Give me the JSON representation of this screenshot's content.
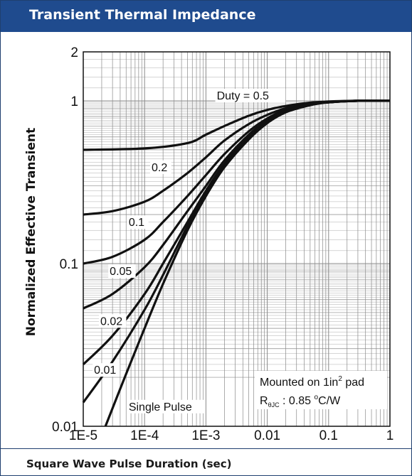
{
  "header": {
    "title": "Transient Thermal Impedance"
  },
  "footer": {
    "xlabel": "Square Wave Pulse Duration (sec)"
  },
  "colors": {
    "title_bar": "#1f4b8e",
    "curve": "#111111",
    "grid": "#8a8a8a"
  },
  "chart_data": {
    "type": "line",
    "title": "Transient Thermal Impedance",
    "xlabel": "Square Wave Pulse Duration (sec)",
    "ylabel": "Normalized Effective Transient",
    "x_scale": "log",
    "y_scale": "log",
    "xlim": [
      1e-05,
      1
    ],
    "ylim": [
      0.01,
      2
    ],
    "grid": true,
    "x_ticks": [
      {
        "value": 1e-05,
        "label": "1E-5"
      },
      {
        "value": 0.0001,
        "label": "1E-4"
      },
      {
        "value": 0.001,
        "label": "1E-3"
      },
      {
        "value": 0.01,
        "label": "0.01"
      },
      {
        "value": 0.1,
        "label": "0.1"
      },
      {
        "value": 1,
        "label": "1"
      }
    ],
    "y_ticks": [
      {
        "value": 0.01,
        "label": "0.01"
      },
      {
        "value": 0.1,
        "label": "0.1"
      },
      {
        "value": 1,
        "label": "1"
      },
      {
        "value": 2,
        "label": "2"
      }
    ],
    "series": [
      {
        "name": "0.5",
        "label": "Duty =  0.5",
        "label_at": [
          0.0015,
          1.02
        ],
        "points": [
          [
            1e-05,
            0.5
          ],
          [
            0.0001,
            0.51
          ],
          [
            0.0005,
            0.55
          ],
          [
            0.001,
            0.62
          ],
          [
            0.002,
            0.7
          ],
          [
            0.005,
            0.81
          ],
          [
            0.01,
            0.88
          ],
          [
            0.02,
            0.93
          ],
          [
            0.05,
            0.975
          ],
          [
            0.1,
            0.99
          ],
          [
            0.3,
            1.0
          ],
          [
            1,
            1.0
          ]
        ]
      },
      {
        "name": "0.2",
        "label": "0.2",
        "label_at": [
          0.00013,
          0.37
        ],
        "points": [
          [
            1e-05,
            0.2
          ],
          [
            3e-05,
            0.21
          ],
          [
            0.0001,
            0.24
          ],
          [
            0.0002,
            0.28
          ],
          [
            0.0005,
            0.36
          ],
          [
            0.001,
            0.45
          ],
          [
            0.002,
            0.57
          ],
          [
            0.005,
            0.72
          ],
          [
            0.01,
            0.82
          ],
          [
            0.02,
            0.9
          ],
          [
            0.05,
            0.96
          ],
          [
            0.1,
            0.985
          ],
          [
            0.3,
            1.0
          ],
          [
            1,
            1.0
          ]
        ]
      },
      {
        "name": "0.1",
        "label": "0.1",
        "label_at": [
          5.5e-05,
          0.17
        ],
        "points": [
          [
            1e-05,
            0.1
          ],
          [
            3e-05,
            0.11
          ],
          [
            0.0001,
            0.14
          ],
          [
            0.0002,
            0.18
          ],
          [
            0.0005,
            0.26
          ],
          [
            0.001,
            0.35
          ],
          [
            0.002,
            0.47
          ],
          [
            0.005,
            0.65
          ],
          [
            0.01,
            0.78
          ],
          [
            0.02,
            0.88
          ],
          [
            0.05,
            0.955
          ],
          [
            0.1,
            0.98
          ],
          [
            0.3,
            1.0
          ],
          [
            1,
            1.0
          ]
        ]
      },
      {
        "name": "0.05",
        "label": "0.05",
        "label_at": [
          2.7e-05,
          0.085
        ],
        "points": [
          [
            1e-05,
            0.053
          ],
          [
            3e-05,
            0.065
          ],
          [
            0.0001,
            0.095
          ],
          [
            0.0002,
            0.13
          ],
          [
            0.0005,
            0.21
          ],
          [
            0.001,
            0.3
          ],
          [
            0.002,
            0.43
          ],
          [
            0.005,
            0.62
          ],
          [
            0.01,
            0.76
          ],
          [
            0.02,
            0.87
          ],
          [
            0.05,
            0.95
          ],
          [
            0.1,
            0.98
          ],
          [
            0.3,
            1.0
          ],
          [
            1,
            1.0
          ]
        ]
      },
      {
        "name": "0.02",
        "label": "0.02",
        "label_at": [
          1.9e-05,
          0.042
        ],
        "points": [
          [
            1e-05,
            0.024
          ],
          [
            3e-05,
            0.036
          ],
          [
            0.0001,
            0.065
          ],
          [
            0.0002,
            0.1
          ],
          [
            0.0005,
            0.18
          ],
          [
            0.001,
            0.28
          ],
          [
            0.002,
            0.41
          ],
          [
            0.005,
            0.6
          ],
          [
            0.01,
            0.75
          ],
          [
            0.02,
            0.86
          ],
          [
            0.05,
            0.95
          ],
          [
            0.1,
            0.98
          ],
          [
            0.3,
            1.0
          ],
          [
            1,
            1.0
          ]
        ]
      },
      {
        "name": "0.01",
        "label": "0.01",
        "label_at": [
          1.5e-05,
          0.021
        ],
        "points": [
          [
            1e-05,
            0.014
          ],
          [
            3e-05,
            0.025
          ],
          [
            0.0001,
            0.052
          ],
          [
            0.0002,
            0.085
          ],
          [
            0.0005,
            0.17
          ],
          [
            0.001,
            0.27
          ],
          [
            0.002,
            0.4
          ],
          [
            0.005,
            0.59
          ],
          [
            0.01,
            0.74
          ],
          [
            0.02,
            0.86
          ],
          [
            0.05,
            0.945
          ],
          [
            0.1,
            0.98
          ],
          [
            0.3,
            1.0
          ],
          [
            1,
            1.0
          ]
        ]
      },
      {
        "name": "Single Pulse",
        "label": "Single Pulse",
        "label_at": [
          5.5e-05,
          0.0125
        ],
        "points": [
          [
            2.3e-05,
            0.01
          ],
          [
            5e-05,
            0.021
          ],
          [
            0.0001,
            0.04
          ],
          [
            0.0002,
            0.075
          ],
          [
            0.0005,
            0.16
          ],
          [
            0.001,
            0.26
          ],
          [
            0.002,
            0.39
          ],
          [
            0.005,
            0.58
          ],
          [
            0.01,
            0.73
          ],
          [
            0.02,
            0.85
          ],
          [
            0.05,
            0.94
          ],
          [
            0.1,
            0.98
          ],
          [
            0.3,
            1.0
          ],
          [
            1,
            1.0
          ]
        ]
      }
    ],
    "annotation": {
      "line1_prefix": "Mounted on 1in",
      "line1_sup": "2",
      "line1_suffix": " pad",
      "line2_symbol": "R",
      "line2_sub": "θJC",
      "line2_value": " : 0.85 ",
      "line2_deg": "o",
      "line2_unit": "C/W"
    }
  }
}
